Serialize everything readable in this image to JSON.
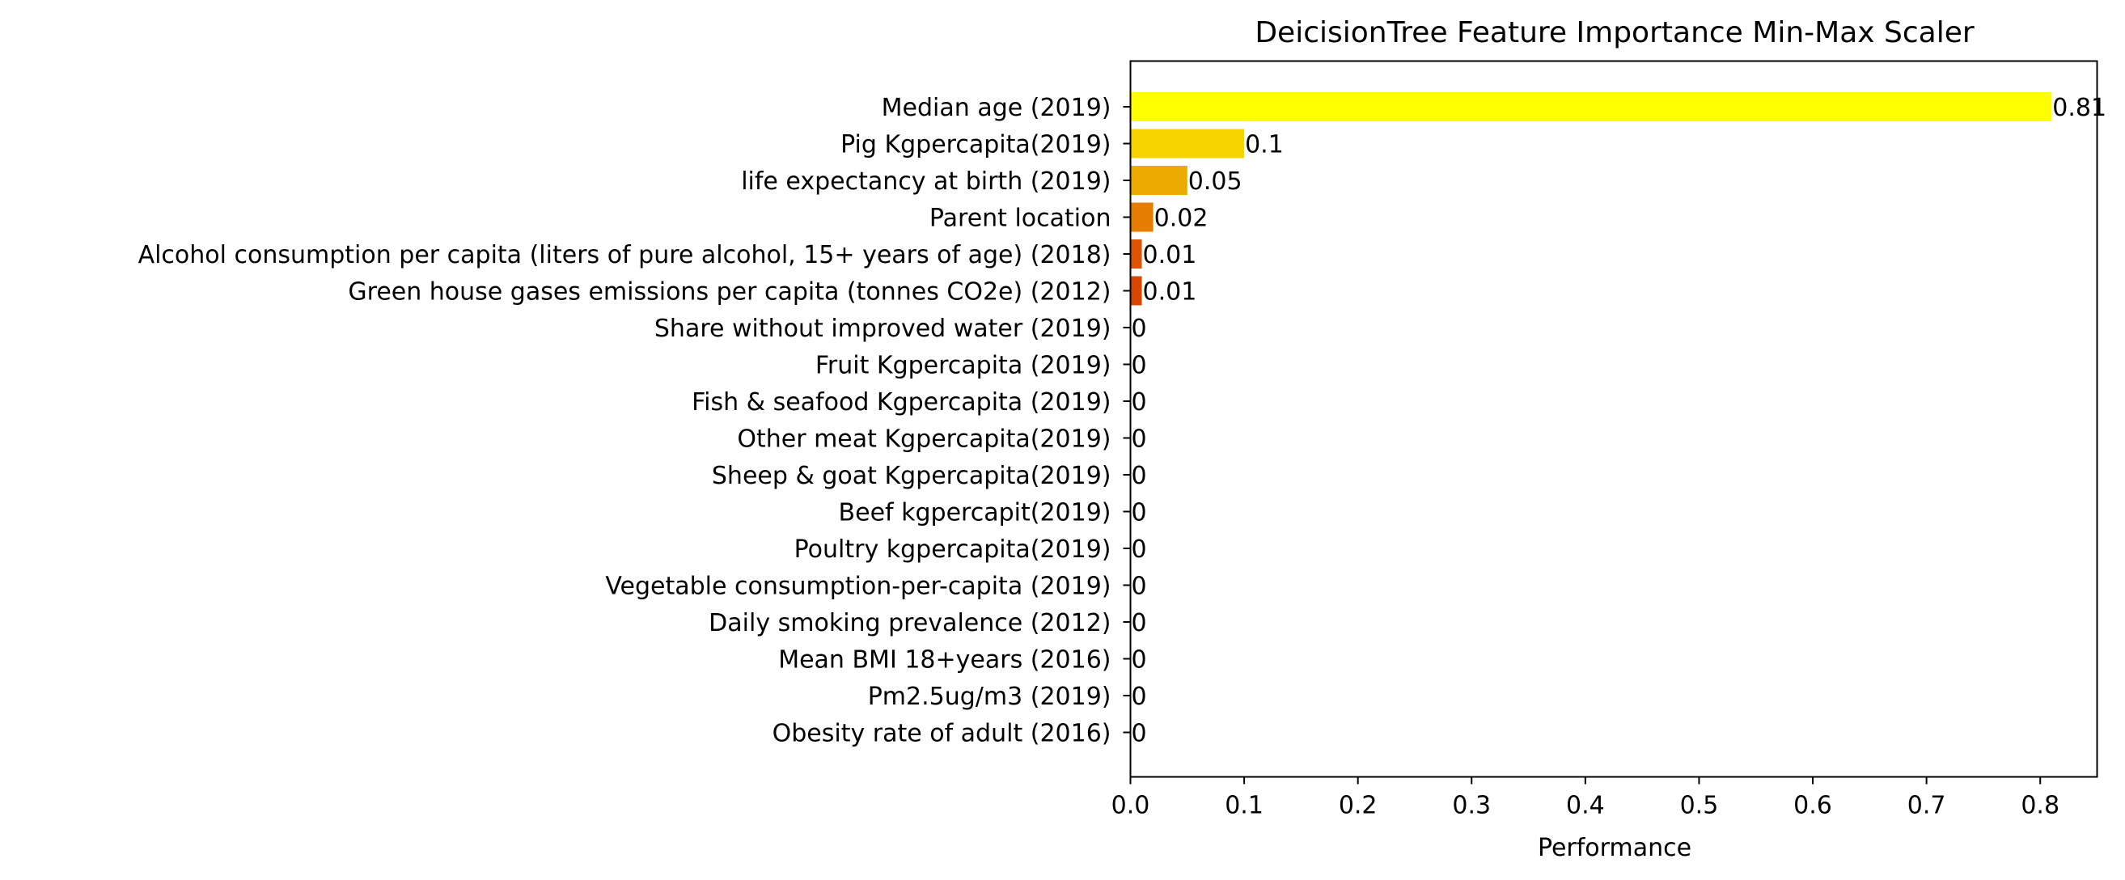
{
  "chart_data": {
    "type": "bar",
    "orientation": "horizontal",
    "title": "DeicisionTree Feature Importance Min-Max Scaler",
    "xlabel": "Performance",
    "ylabel": "",
    "xlim": [
      0,
      0.85
    ],
    "xticks": [
      "0.0",
      "0.1",
      "0.2",
      "0.3",
      "0.4",
      "0.5",
      "0.6",
      "0.7",
      "0.8"
    ],
    "grid": false,
    "categories": [
      "Median age (2019)",
      "Pig Kgpercapita(2019)",
      "life expectancy at birth (2019)",
      "Parent location",
      "Alcohol consumption per capita (liters of pure alcohol, 15+ years of age) (2018)",
      "Green house gases emissions per capita (tonnes CO2e) (2012)",
      "Share without improved water (2019)",
      "Fruit Kgpercapita (2019)",
      "Fish & seafood Kgpercapita (2019)",
      "Other meat Kgpercapita(2019)",
      "Sheep & goat Kgpercapita(2019)",
      "Beef kgpercapit(2019)",
      "Poultry kgpercapita(2019)",
      "Vegetable consumption-per-capita (2019)",
      "Daily smoking prevalence (2012)",
      "Mean BMI 18+years (2016)",
      "Pm2.5ug/m3 (2019)",
      "Obesity rate of adult (2016)"
    ],
    "values": [
      0.81,
      0.1,
      0.05,
      0.02,
      0.01,
      0.01,
      0,
      0,
      0,
      0,
      0,
      0,
      0,
      0,
      0,
      0,
      0,
      0
    ],
    "value_labels": [
      "0.81",
      "0.1",
      "0.05",
      "0.02",
      "0.01",
      "0.01",
      "0",
      "0",
      "0",
      "0",
      "0",
      "0",
      "0",
      "0",
      "0",
      "0",
      "0",
      "0"
    ],
    "colors": [
      "#ffff00",
      "#f6d400",
      "#edaa00",
      "#e57d00",
      "#dc5500",
      "#d84700",
      "#d84700",
      "#d84700",
      "#d84700",
      "#d84700",
      "#d84700",
      "#d84700",
      "#d84700",
      "#d84700",
      "#d84700",
      "#d84700",
      "#d84700",
      "#d84700"
    ]
  }
}
